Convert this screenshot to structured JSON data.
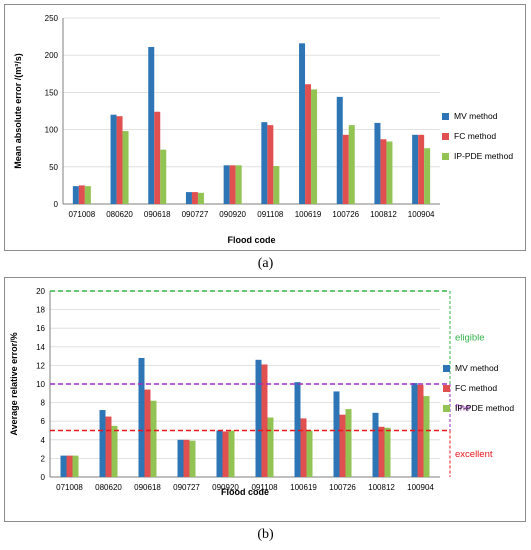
{
  "figure": {
    "label_a": "(a)",
    "label_b": "(b)"
  },
  "chart_data": [
    {
      "type": "bar",
      "xlabel": "Flood code",
      "ylabel": "Mean absolute error /(m³/s)",
      "ylim": [
        0,
        250
      ],
      "yticks": [
        0,
        50,
        100,
        150,
        200,
        250
      ],
      "grid": true,
      "legend_position": "right",
      "categories": [
        "071008",
        "080620",
        "090618",
        "090727",
        "090920",
        "091108",
        "100619",
        "100726",
        "100812",
        "100904"
      ],
      "series": [
        {
          "name": "MV method",
          "color": "#2e75b6",
          "values": [
            24,
            120,
            211,
            16,
            52,
            110,
            216,
            144,
            109,
            93
          ]
        },
        {
          "name": "FC method",
          "color": "#e15050",
          "values": [
            25,
            118,
            124,
            16,
            52,
            106,
            161,
            93,
            87,
            93
          ]
        },
        {
          "name": "IP-PDE method",
          "color": "#92c353",
          "values": [
            24,
            98,
            73,
            15,
            52,
            51,
            154,
            106,
            84,
            75
          ]
        }
      ]
    },
    {
      "type": "bar",
      "xlabel": "Flood code",
      "ylabel": "Average relative error/%",
      "ylim": [
        0,
        20
      ],
      "yticks": [
        0,
        2,
        4,
        6,
        8,
        10,
        12,
        14,
        16,
        18,
        20
      ],
      "grid": true,
      "legend_position": "right",
      "categories": [
        "071008",
        "080620",
        "090618",
        "090727",
        "090920",
        "091108",
        "100619",
        "100726",
        "100812",
        "100904"
      ],
      "series": [
        {
          "name": "MV method",
          "color": "#2e75b6",
          "values": [
            2.3,
            7.2,
            12.8,
            4.0,
            5.0,
            12.6,
            10.2,
            9.2,
            6.9,
            10.1
          ]
        },
        {
          "name": "FC method",
          "color": "#e15050",
          "values": [
            2.3,
            6.5,
            9.4,
            4.0,
            4.9,
            12.1,
            6.3,
            6.7,
            5.4,
            9.9
          ]
        },
        {
          "name": "IP-PDE method",
          "color": "#92c353",
          "values": [
            2.3,
            5.5,
            8.2,
            3.9,
            5.0,
            6.4,
            5.0,
            7.3,
            5.3,
            8.7
          ]
        }
      ],
      "bands": [
        {
          "label": "excellent",
          "range": [
            0,
            5
          ],
          "color": "#e8151b"
        },
        {
          "label": "fine",
          "range": [
            5,
            10
          ],
          "color": "#9a2fc0"
        },
        {
          "label": "eligible",
          "range": [
            10,
            20
          ],
          "color": "#33b34a"
        }
      ]
    }
  ]
}
